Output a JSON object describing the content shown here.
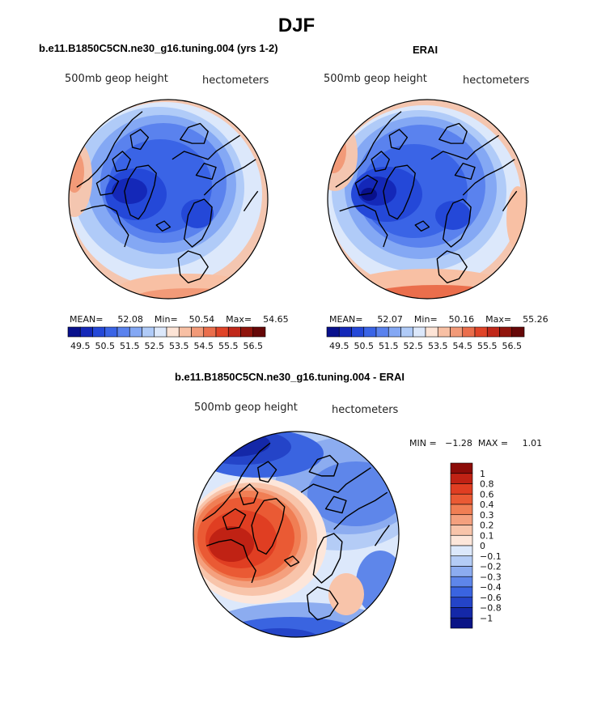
{
  "page": {
    "title": "DJF"
  },
  "panels": [
    {
      "id": "model",
      "subtitle": "b.e11.B1850C5CN.ne30_g16.tuning.004 (yrs 1-2)",
      "left_label": "500mb geop height",
      "right_label": "hectometers",
      "stats": {
        "mean_label": "MEAN=",
        "mean": "52.08",
        "min_label": "Min=",
        "min": "50.54",
        "max_label": "Max=",
        "max": "54.65"
      }
    },
    {
      "id": "erai",
      "subtitle": "ERAI",
      "left_label": "500mb geop height",
      "right_label": "hectometers",
      "stats": {
        "mean_label": "MEAN=",
        "mean": "52.07",
        "min_label": "Min=",
        "min": "50.16",
        "max_label": "Max=",
        "max": "55.26"
      }
    },
    {
      "id": "diff",
      "subtitle": "b.e11.B1850C5CN.ne30_g16.tuning.004 - ERAI",
      "left_label": "500mb geop height",
      "right_label": "hectometers",
      "minmax": "MIN =   −1.28  MAX =     1.01"
    }
  ],
  "abs_colorbar": {
    "ticks": [
      "49.5",
      "50.5",
      "51.5",
      "52.5",
      "53.5",
      "54.5",
      "55.5",
      "56.5"
    ],
    "colors": [
      "#08108c",
      "#1428b8",
      "#2448d8",
      "#3a64e6",
      "#5a82ee",
      "#84a8f4",
      "#b0cbf8",
      "#dce8fb",
      "#fde4d6",
      "#f8c0a4",
      "#f29a78",
      "#ea6e4c",
      "#e04428",
      "#c0281a",
      "#90140c",
      "#660808"
    ]
  },
  "diff_colorbar": {
    "labels": [
      "1",
      "0.8",
      "0.6",
      "0.4",
      "0.3",
      "0.2",
      "0.1",
      "0",
      "−0.1",
      "−0.2",
      "−0.3",
      "−0.4",
      "−0.6",
      "−0.8",
      "−1"
    ],
    "colors": [
      "#8c0c08",
      "#c02214",
      "#e03e22",
      "#ea5a34",
      "#f07e54",
      "#f4a07e",
      "#f8c4aa",
      "#fde6da",
      "#dce8fb",
      "#b4ccf6",
      "#8cacf0",
      "#5e86ea",
      "#3a64e0",
      "#2444c8",
      "#1428a8",
      "#0a1486"
    ]
  },
  "colors": {
    "land_outline": "#000000",
    "neutral": "#f3f5fb"
  }
}
